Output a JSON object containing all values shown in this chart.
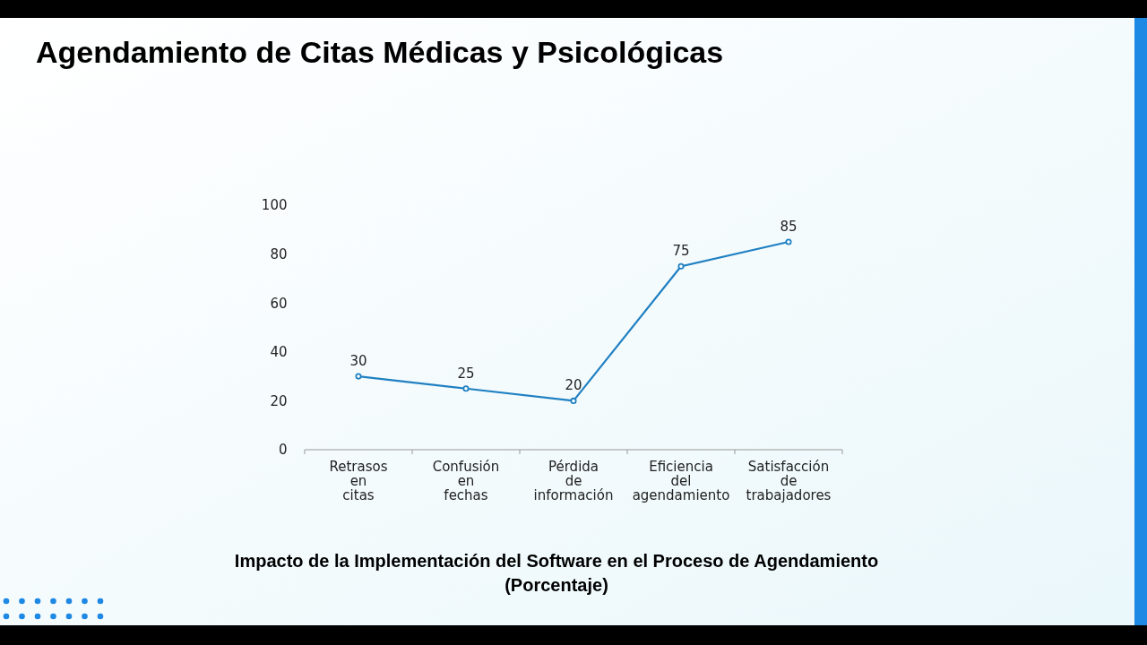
{
  "chart_data": {
    "type": "line",
    "title": "Agendamiento de Citas Médicas y Psicológicas",
    "categories": [
      "Retrasos en citas",
      "Confusión en fechas",
      "Pérdida de información",
      "Eficiencia del agendamiento",
      "Satisfacción de trabajadores"
    ],
    "series": [
      {
        "color": "#1f80c2",
        "values": [
          30,
          25,
          20,
          75,
          85
        ]
      }
    ],
    "ylim": [
      0,
      100
    ],
    "yticks": [
      0,
      20,
      40,
      60,
      80,
      100
    ],
    "grid": false,
    "marker": "circle",
    "line_style": "solid",
    "data_labels": true,
    "annotations": [
      "Impacto de la Implementación del Software en el Proceso de Agendamiento (Porcentaje)"
    ]
  }
}
